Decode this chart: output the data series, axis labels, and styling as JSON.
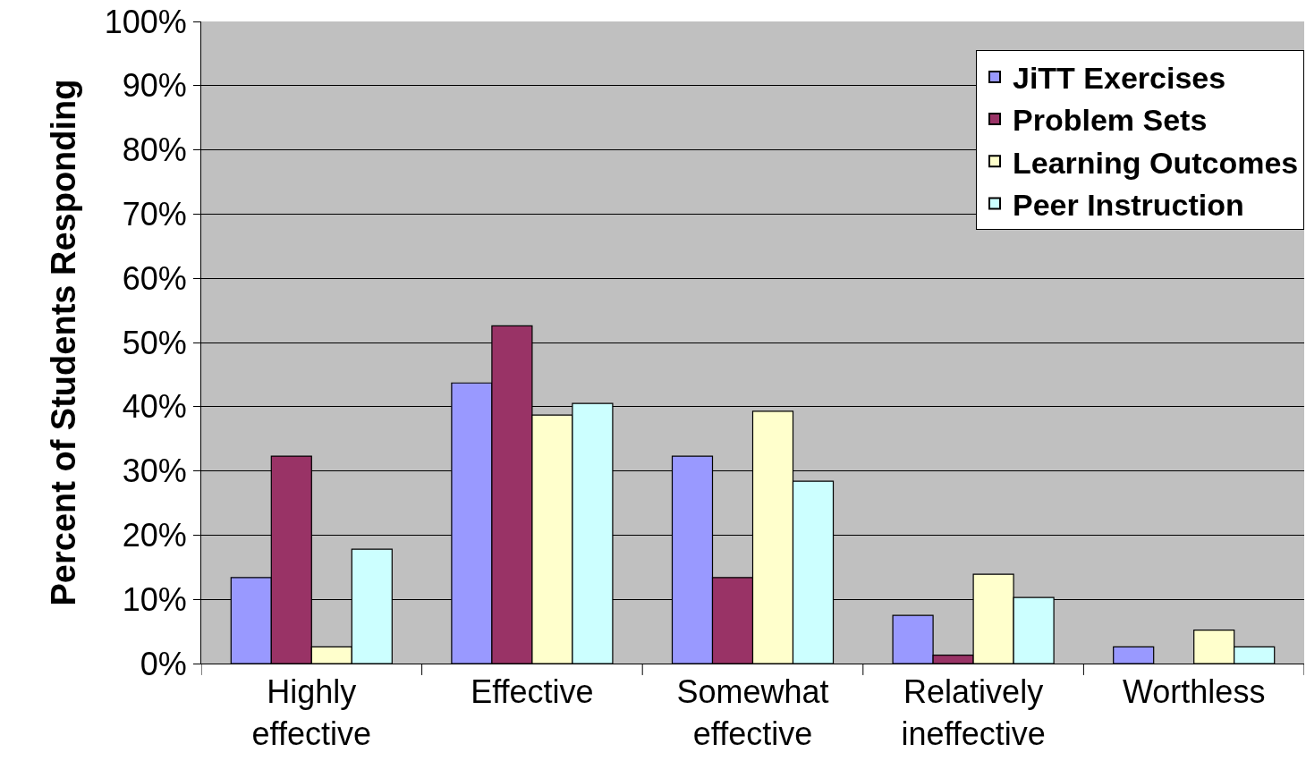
{
  "chart_data": {
    "type": "bar",
    "ylabel": "Percent of Students Responding",
    "categories": [
      "Highly effective",
      "Effective",
      "Somewhat effective",
      "Relatively ineffective",
      "Worthless"
    ],
    "series": [
      {
        "name": "JiTT Exercises",
        "color": "#9999ff",
        "values": [
          13.4,
          43.7,
          32.3,
          7.5,
          2.6
        ]
      },
      {
        "name": "Problem Sets",
        "color": "#993366",
        "values": [
          32.3,
          52.6,
          13.4,
          1.3,
          null
        ]
      },
      {
        "name": "Learning Outcomes",
        "color": "#ffffcc",
        "values": [
          2.6,
          38.7,
          39.3,
          13.9,
          5.2
        ]
      },
      {
        "name": "Peer Instruction",
        "color": "#ccffff",
        "values": [
          17.8,
          40.5,
          28.4,
          10.3,
          2.6
        ]
      }
    ],
    "ylim": [
      0,
      100
    ],
    "yticks": [
      {
        "value": 0,
        "label": "0%"
      },
      {
        "value": 10,
        "label": "10%"
      },
      {
        "value": 20,
        "label": "20%"
      },
      {
        "value": 30,
        "label": "30%"
      },
      {
        "value": 40,
        "label": "40%"
      },
      {
        "value": 50,
        "label": "50%"
      },
      {
        "value": 60,
        "label": "60%"
      },
      {
        "value": 70,
        "label": "70%"
      },
      {
        "value": 80,
        "label": "80%"
      },
      {
        "value": 90,
        "label": "90%"
      },
      {
        "value": 100,
        "label": "100%"
      }
    ],
    "grid": "y",
    "legend": "top right"
  }
}
